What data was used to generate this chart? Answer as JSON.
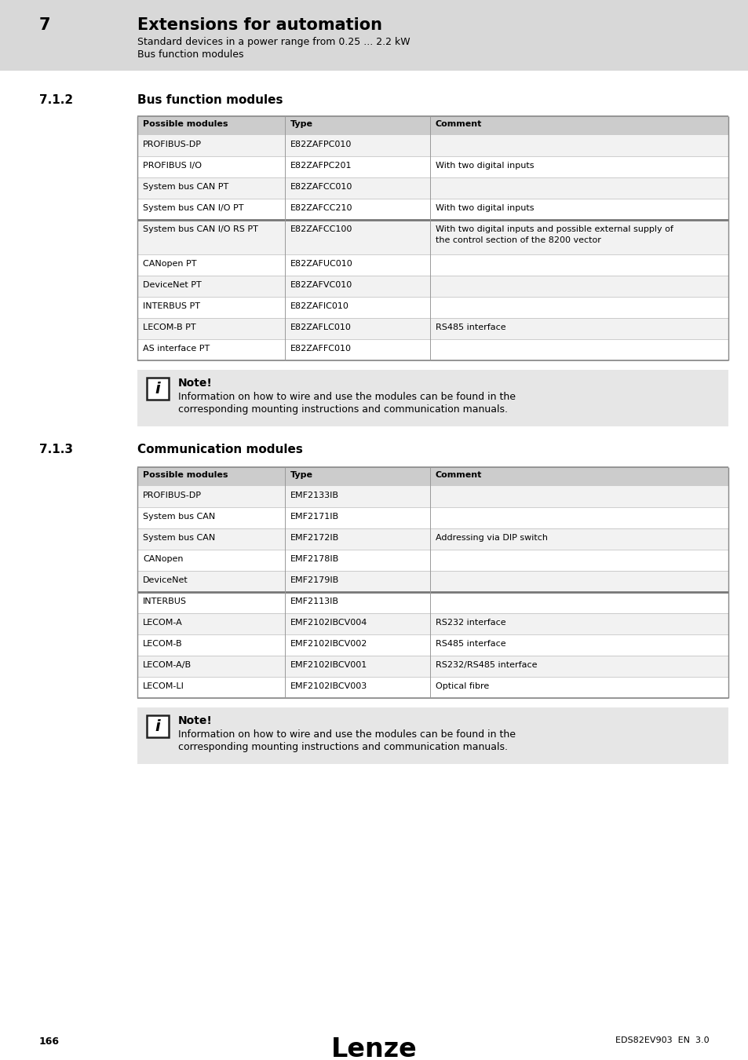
{
  "page_bg": "#ffffff",
  "header_bg": "#d8d8d8",
  "table_header_bg": "#cccccc",
  "table_row_even_bg": "#f2f2f2",
  "table_row_odd_bg": "#ffffff",
  "note_bg": "#e6e6e6",
  "header_number": "7",
  "header_title": "Extensions for automation",
  "header_sub1": "Standard devices in a power range from 0.25 ... 2.2 kW",
  "header_sub2": "Bus function modules",
  "section1_num": "7.1.2",
  "section1_title": "Bus function modules",
  "section2_num": "7.1.3",
  "section2_title": "Communication modules",
  "table1_headers": [
    "Possible modules",
    "Type",
    "Comment"
  ],
  "table1_rows": [
    [
      "PROFIBUS-DP",
      "E82ZAFPC010",
      ""
    ],
    [
      "PROFIBUS I/O",
      "E82ZAFPC201",
      "With two digital inputs"
    ],
    [
      "System bus CAN PT",
      "E82ZAFCC010",
      ""
    ],
    [
      "System bus CAN I/O PT",
      "E82ZAFCC210",
      "With two digital inputs"
    ],
    [
      "System bus CAN I/O RS PT",
      "E82ZAFCC100",
      "With two digital inputs and possible external supply of\nthe control section of the 8200 vector"
    ],
    [
      "CANopen PT",
      "E82ZAFUC010",
      ""
    ],
    [
      "DeviceNet PT",
      "E82ZAFVC010",
      ""
    ],
    [
      "INTERBUS PT",
      "E82ZAFIC010",
      ""
    ],
    [
      "LECOM-B PT",
      "E82ZAFLC010",
      "RS485 interface"
    ],
    [
      "AS interface PT",
      "E82ZAFFC010",
      ""
    ]
  ],
  "table1_group_separator_after": 4,
  "table2_headers": [
    "Possible modules",
    "Type",
    "Comment"
  ],
  "table2_rows": [
    [
      "PROFIBUS-DP",
      "EMF2133IB",
      ""
    ],
    [
      "System bus CAN",
      "EMF2171IB",
      ""
    ],
    [
      "System bus CAN",
      "EMF2172IB",
      "Addressing via DIP switch"
    ],
    [
      "CANopen",
      "EMF2178IB",
      ""
    ],
    [
      "DeviceNet",
      "EMF2179IB",
      ""
    ],
    [
      "INTERBUS",
      "EMF2113IB",
      ""
    ],
    [
      "LECOM-A",
      "EMF2102IBCV004",
      "RS232 interface"
    ],
    [
      "LECOM-B",
      "EMF2102IBCV002",
      "RS485 interface"
    ],
    [
      "LECOM-A/B",
      "EMF2102IBCV001",
      "RS232/RS485 interface"
    ],
    [
      "LECOM-LI",
      "EMF2102IBCV003",
      "Optical fibre"
    ]
  ],
  "table2_group_separator_after": 5,
  "note_title": "Note!",
  "note_line1": "Information on how to wire and use the modules can be found in the",
  "note_line2": "corresponding mounting instructions and communication manuals.",
  "footer_page": "166",
  "footer_brand": "Lenze",
  "footer_doc": "EDS82EV903  EN  3.0"
}
